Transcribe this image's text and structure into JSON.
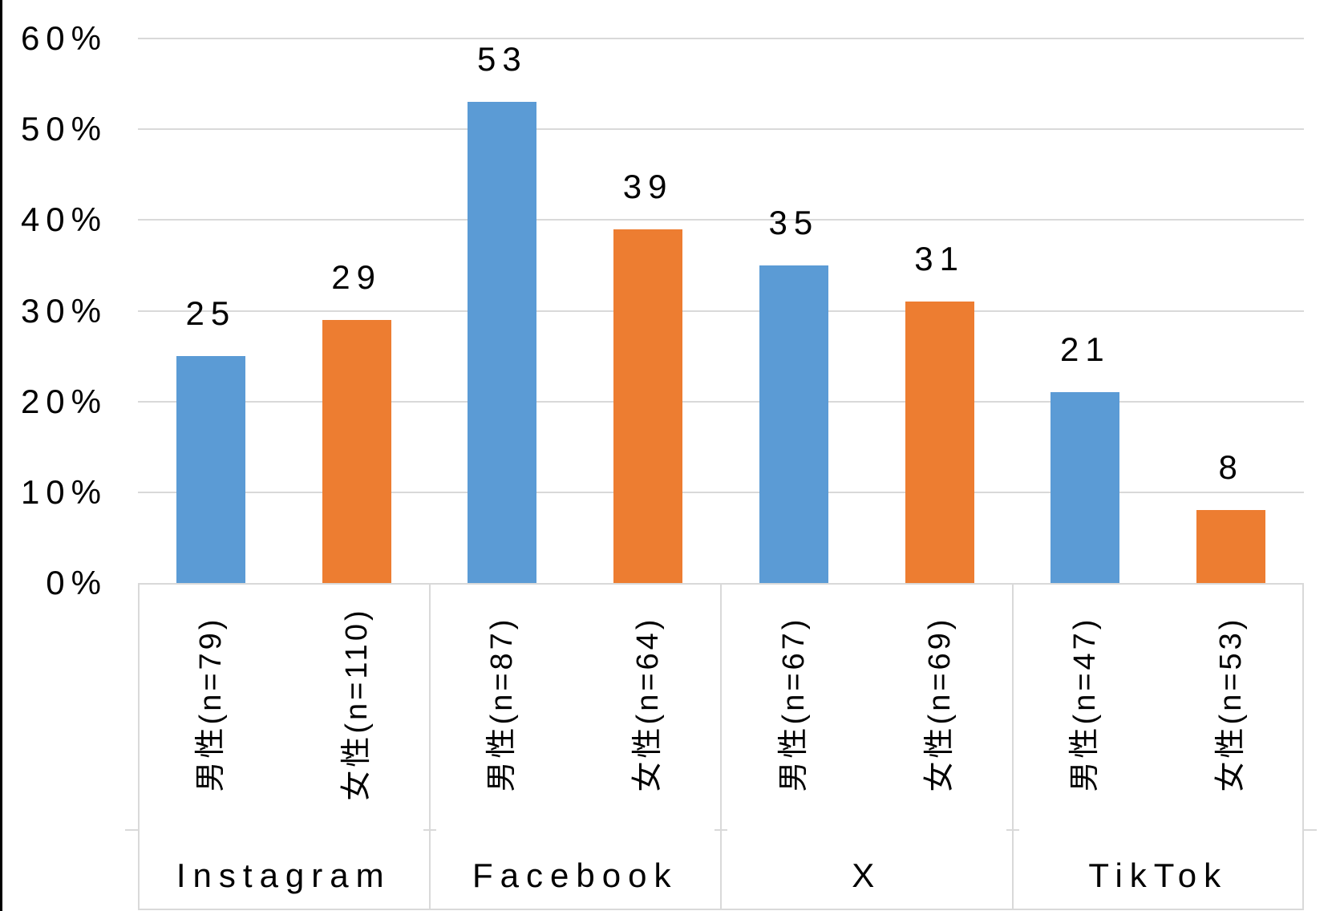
{
  "chart_data": {
    "type": "bar",
    "title": "",
    "xlabel": "",
    "ylabel": "",
    "legend": "none",
    "grid": "horizontal",
    "yaxis": {
      "min": 0,
      "max": 60,
      "step": 10,
      "tick_labels": [
        "0%",
        "10%",
        "20%",
        "30%",
        "40%",
        "50%",
        "60%"
      ]
    },
    "series": [
      {
        "name": "男性",
        "color": "#5B9BD5"
      },
      {
        "name": "女性",
        "color": "#ED7D31"
      }
    ],
    "categories": [
      {
        "label": "Instagram",
        "bars": [
          {
            "series": "男性",
            "tick": "男性(n=79)",
            "value": 25
          },
          {
            "series": "女性",
            "tick": "女性(n=110)",
            "value": 29
          }
        ]
      },
      {
        "label": "Facebook",
        "bars": [
          {
            "series": "男性",
            "tick": "男性(n=87)",
            "value": 53
          },
          {
            "series": "女性",
            "tick": "女性(n=64)",
            "value": 39
          }
        ]
      },
      {
        "label": "X",
        "bars": [
          {
            "series": "男性",
            "tick": "男性(n=67)",
            "value": 35
          },
          {
            "series": "女性",
            "tick": "女性(n=69)",
            "value": 31
          }
        ]
      },
      {
        "label": "TikTok",
        "bars": [
          {
            "series": "男性",
            "tick": "男性(n=47)",
            "value": 21
          },
          {
            "series": "女性",
            "tick": "女性(n=53)",
            "value": 8
          }
        ]
      }
    ],
    "colors": {
      "bar_male": "#5B9BD5",
      "bar_female": "#ED7D31",
      "gridline": "#D9D9D9",
      "axis_box": "#D9D9D9",
      "text": "#000000",
      "left_edge_line": "#000000"
    }
  }
}
